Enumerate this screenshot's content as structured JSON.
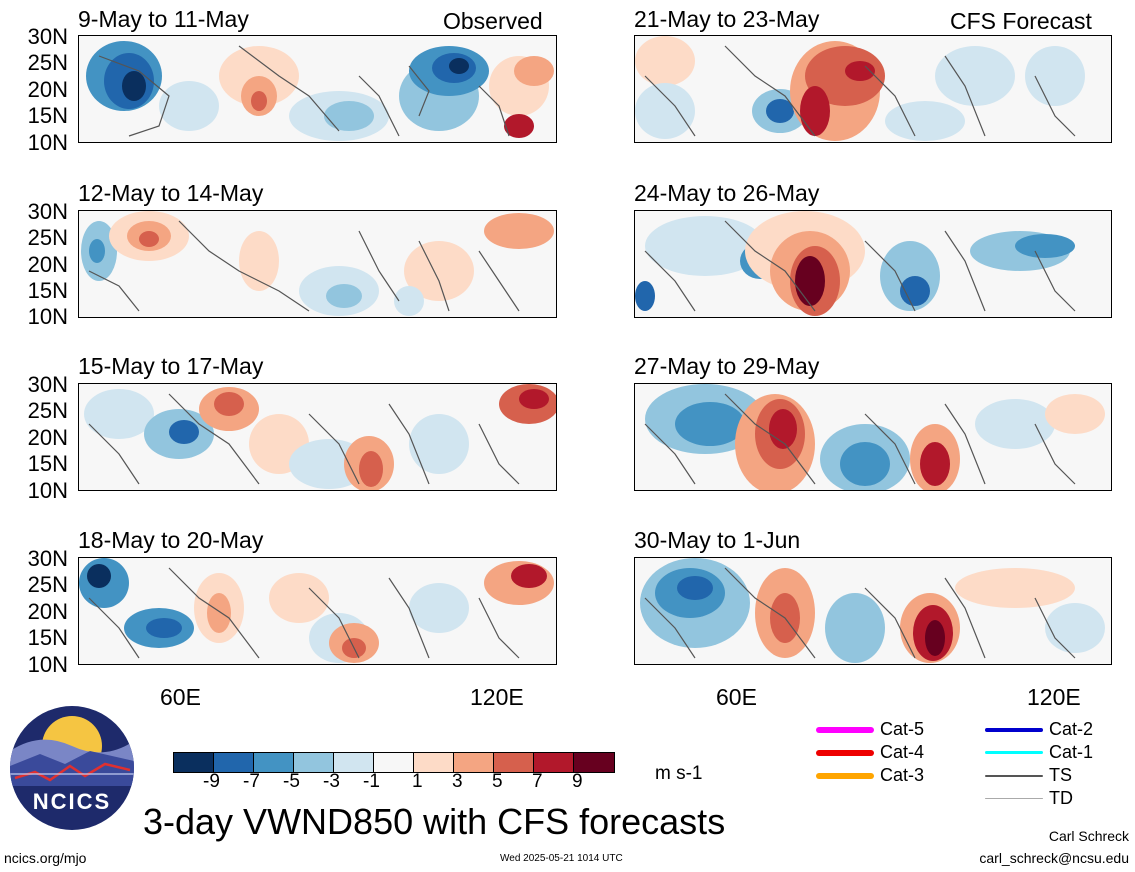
{
  "left_column": {
    "tag": "Observed",
    "panels": [
      {
        "title": "9-May to 11-May"
      },
      {
        "title": "12-May to 14-May"
      },
      {
        "title": "15-May to 17-May"
      },
      {
        "title": "18-May to 20-May"
      }
    ]
  },
  "right_column": {
    "tag": "CFS Forecast",
    "panels": [
      {
        "title": "21-May to 23-May"
      },
      {
        "title": "24-May to 26-May"
      },
      {
        "title": "27-May to 29-May"
      },
      {
        "title": "30-May to 1-Jun"
      }
    ]
  },
  "lat_labels": [
    "30N",
    "25N",
    "20N",
    "15N",
    "10N"
  ],
  "lon_labels": [
    "60E",
    "120E"
  ],
  "colorbar": {
    "ticks": [
      "-9",
      "-7",
      "-5",
      "-3",
      "-1",
      "1",
      "3",
      "5",
      "7",
      "9"
    ],
    "colors": [
      "#0a2f5e",
      "#2166ac",
      "#4393c3",
      "#92c5de",
      "#d1e5f0",
      "#f7f7f7",
      "#fddbc7",
      "#f4a582",
      "#d6604d",
      "#b2182b",
      "#67001f"
    ],
    "units": "m s-1"
  },
  "legend": [
    {
      "label": "Cat-5",
      "color": "#ff00ff"
    },
    {
      "label": "Cat-4",
      "color": "#ee0000"
    },
    {
      "label": "Cat-3",
      "color": "#ffa500"
    },
    {
      "label": "Cat-2",
      "color": "#0000cd"
    },
    {
      "label": "Cat-1",
      "color": "#00ffff"
    },
    {
      "label": "TS",
      "color": "#555555"
    },
    {
      "label": "TD",
      "color": "#aaaaaa"
    }
  ],
  "logo_text": "NCICS",
  "main_title": "3-day VWND850 with CFS forecasts",
  "footer": {
    "url": "ncics.org/mjo",
    "timestamp": "Wed 2025-05-21 1014 UTC",
    "author": "Carl Schreck",
    "email": "carl_schreck@ncsu.edu"
  }
}
